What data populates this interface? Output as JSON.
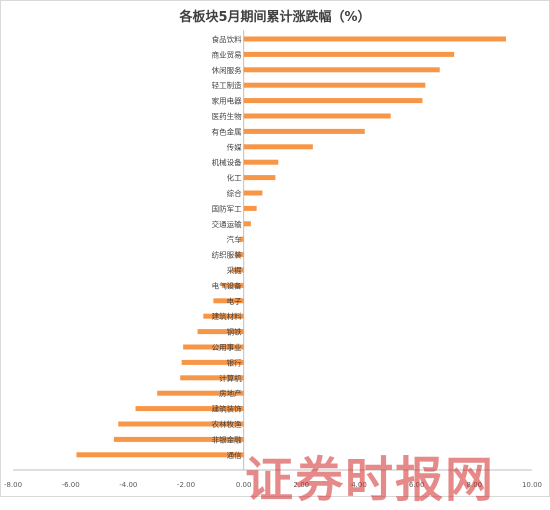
{
  "chart_data": {
    "type": "bar",
    "orientation": "horizontal",
    "title": "各板块5月期间累计涨跌幅（%）",
    "xlabel": "",
    "ylabel": "",
    "xlim": [
      -8,
      10
    ],
    "x_ticks": [
      "-8.00",
      "-6.00",
      "-4.00",
      "-2.00",
      "0.00",
      "2.00",
      "4.00",
      "6.00",
      "8.00",
      "10.00"
    ],
    "grid": false,
    "legend": "none",
    "bar_color": "#F79646",
    "categories": [
      "食品饮料",
      "商业贸易",
      "休闲服务",
      "轻工制造",
      "家用电器",
      "医药生物",
      "有色金属",
      "传媒",
      "机械设备",
      "化工",
      "综合",
      "国防军工",
      "交通运输",
      "汽车",
      "纺织服装",
      "采掘",
      "电气设备",
      "电子",
      "建筑材料",
      "钢铁",
      "公用事业",
      "银行",
      "计算机",
      "房地产",
      "建筑装饰",
      "农林牧渔",
      "非银金融",
      "通信"
    ],
    "values": [
      9.1,
      7.3,
      6.8,
      6.3,
      6.2,
      5.1,
      4.2,
      2.4,
      1.2,
      1.1,
      0.65,
      0.45,
      0.25,
      -0.15,
      -0.3,
      -0.4,
      -0.75,
      -1.05,
      -1.4,
      -1.6,
      -2.1,
      -2.15,
      -2.2,
      -3.0,
      -3.75,
      -4.35,
      -4.5,
      -5.8
    ]
  },
  "watermark": "证券时报网"
}
